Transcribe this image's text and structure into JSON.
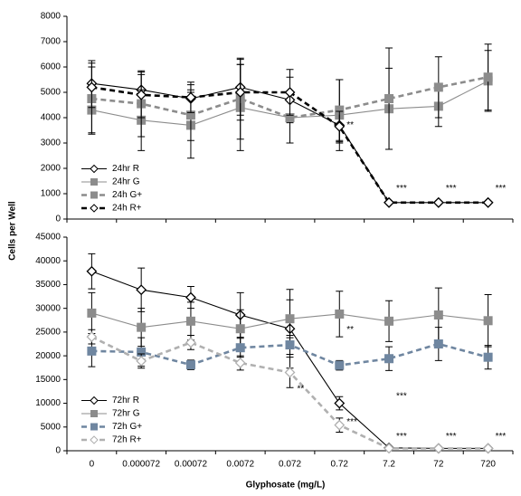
{
  "chart_data": [
    {
      "type": "line",
      "ylabel": "Cells per Well",
      "ylim": [
        0,
        8000
      ],
      "yticks": [
        0,
        1000,
        2000,
        3000,
        4000,
        5000,
        6000,
        7000,
        8000
      ],
      "legend": "lower left",
      "series": [
        {
          "name": "24hr R",
          "color": "#000000",
          "dashed": false,
          "marker": "diamond",
          "values": [
            5350,
            5100,
            4750,
            5200,
            4700,
            3700,
            650,
            650,
            650
          ],
          "errors": [
            900,
            600,
            550,
            1100,
            900,
            700,
            null,
            null,
            null
          ]
        },
        {
          "name": "24hr G",
          "color": "#8c8c8c",
          "dashed": false,
          "marker": "square",
          "values": [
            4300,
            3900,
            3700,
            4400,
            4000,
            4100,
            4350,
            4450,
            5450
          ],
          "errors": [
            900,
            1200,
            1300,
            1700,
            1000,
            1400,
            1600,
            800,
            1200
          ]
        },
        {
          "name": "24h G+",
          "color": "#8c8c8c",
          "dashed": true,
          "marker": "square",
          "values": [
            4750,
            4550,
            4100,
            4750,
            4000,
            4300,
            4750,
            5200,
            5600
          ],
          "errors": [
            1400,
            1300,
            1000,
            1600,
            1000,
            1200,
            2000,
            1200,
            1300
          ]
        },
        {
          "name": "24h R+",
          "color": "#000000",
          "dashed": true,
          "marker": "diamond",
          "values": [
            5200,
            4900,
            4800,
            5000,
            5000,
            3650,
            650,
            650,
            650
          ],
          "errors": [
            800,
            900,
            600,
            1100,
            900,
            600,
            null,
            null,
            null
          ]
        }
      ],
      "annotations": [
        {
          "text": "**",
          "x": 5,
          "y": 3700
        },
        {
          "text": "***",
          "x": 6,
          "y": 1200
        },
        {
          "text": "***",
          "x": 7,
          "y": 1200
        },
        {
          "text": "***",
          "x": 8,
          "y": 1200
        }
      ]
    },
    {
      "type": "line",
      "xlabel": "Glyphosate (mg/L)",
      "categories": [
        "0",
        "0.000072",
        "0.00072",
        "0.0072",
        "0.072",
        "0.72",
        "7.2",
        "72",
        "720"
      ],
      "ylim": [
        0,
        45000
      ],
      "yticks": [
        0,
        5000,
        10000,
        15000,
        20000,
        25000,
        30000,
        35000,
        40000,
        45000
      ],
      "legend": "lower left",
      "series": [
        {
          "name": "72hr R",
          "color": "#000000",
          "dashed": false,
          "marker": "diamond",
          "values": [
            37800,
            33900,
            32300,
            28600,
            25700,
            10000,
            600,
            500,
            500
          ],
          "errors": [
            3700,
            4600,
            2300,
            4700,
            8300,
            1400,
            null,
            null,
            null
          ]
        },
        {
          "name": "72hr G",
          "color": "#8c8c8c",
          "dashed": false,
          "marker": "square",
          "values": [
            29000,
            26000,
            27300,
            25700,
            27800,
            28800,
            27300,
            28600,
            27400
          ],
          "errors": [
            4300,
            4000,
            4000,
            4000,
            4000,
            4800,
            4300,
            5700,
            5500
          ]
        },
        {
          "name": "72h G+",
          "color": "#6f86a0",
          "dashed": true,
          "marker": "square",
          "values": [
            21000,
            20800,
            18100,
            21700,
            22300,
            18000,
            19400,
            22500,
            19700
          ],
          "errors": [
            3300,
            3000,
            1000,
            2000,
            2000,
            1000,
            2500,
            3500,
            2500
          ]
        },
        {
          "name": "72h R+",
          "color": "#b0b0b0",
          "dashed": true,
          "marker": "diamond",
          "values": [
            24000,
            18900,
            22800,
            18500,
            16500,
            5400,
            500,
            500,
            500
          ],
          "errors": [
            1500,
            1500,
            1500,
            1500,
            3200,
            1500,
            null,
            null,
            null
          ]
        }
      ],
      "annotations": [
        {
          "text": "**",
          "x": 5,
          "y": 25500
        },
        {
          "text": "***",
          "x": 6,
          "y": 11500
        },
        {
          "text": "**",
          "x": 4,
          "y": 13000
        },
        {
          "text": "***",
          "x": 5,
          "y": 6000
        },
        {
          "text": "***",
          "x": 6,
          "y": 3000
        },
        {
          "text": "***",
          "x": 7,
          "y": 3000
        },
        {
          "text": "***",
          "x": 8,
          "y": 3000
        }
      ]
    }
  ]
}
